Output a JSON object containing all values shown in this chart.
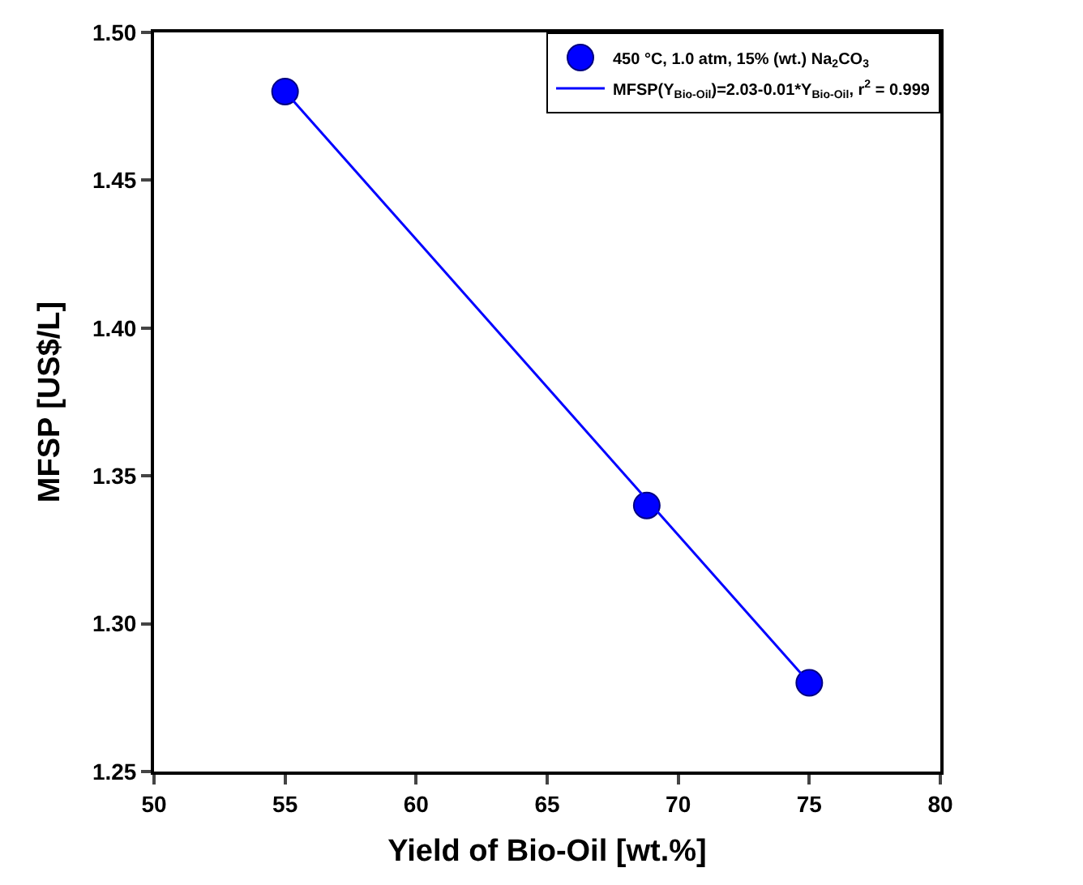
{
  "chart_data": {
    "type": "scatter",
    "xlabel": "Yield of Bio-Oil [wt.%]",
    "ylabel": "MFSP [US$/L]",
    "xlim": [
      50,
      80
    ],
    "xticks": [
      50,
      55,
      60,
      65,
      70,
      75,
      80
    ],
    "ylim": [
      1.25,
      1.5
    ],
    "yticks": [
      {
        "value": 1.25,
        "label": "1.25"
      },
      {
        "value": 1.3,
        "label": "1.30"
      },
      {
        "value": 1.35,
        "label": "1.35"
      },
      {
        "value": 1.4,
        "label": "1.40"
      },
      {
        "value": 1.45,
        "label": "1.45"
      },
      {
        "value": 1.5,
        "label": "1.50"
      }
    ],
    "legend": "top right",
    "marker": "circle",
    "series": [
      {
        "name": "450 °C, 1.0 atm, 15% (wt.) Na$_{2}$CO$_{3}$",
        "color": "#0000ff",
        "x": [
          55,
          68.8,
          75
        ],
        "values": [
          1.48,
          1.34,
          1.28
        ]
      },
      {
        "type": "line",
        "name": "MFSP(Y$_{Bio-Oil}$)=2.03-0.01*Y$_{Bio-Oil}$, r$^{2}$ = 0.999",
        "color": "#0000ff",
        "x": [
          55,
          75
        ],
        "values": [
          1.48,
          1.28
        ],
        "marker": "none",
        "line_style": "solid"
      }
    ]
  }
}
